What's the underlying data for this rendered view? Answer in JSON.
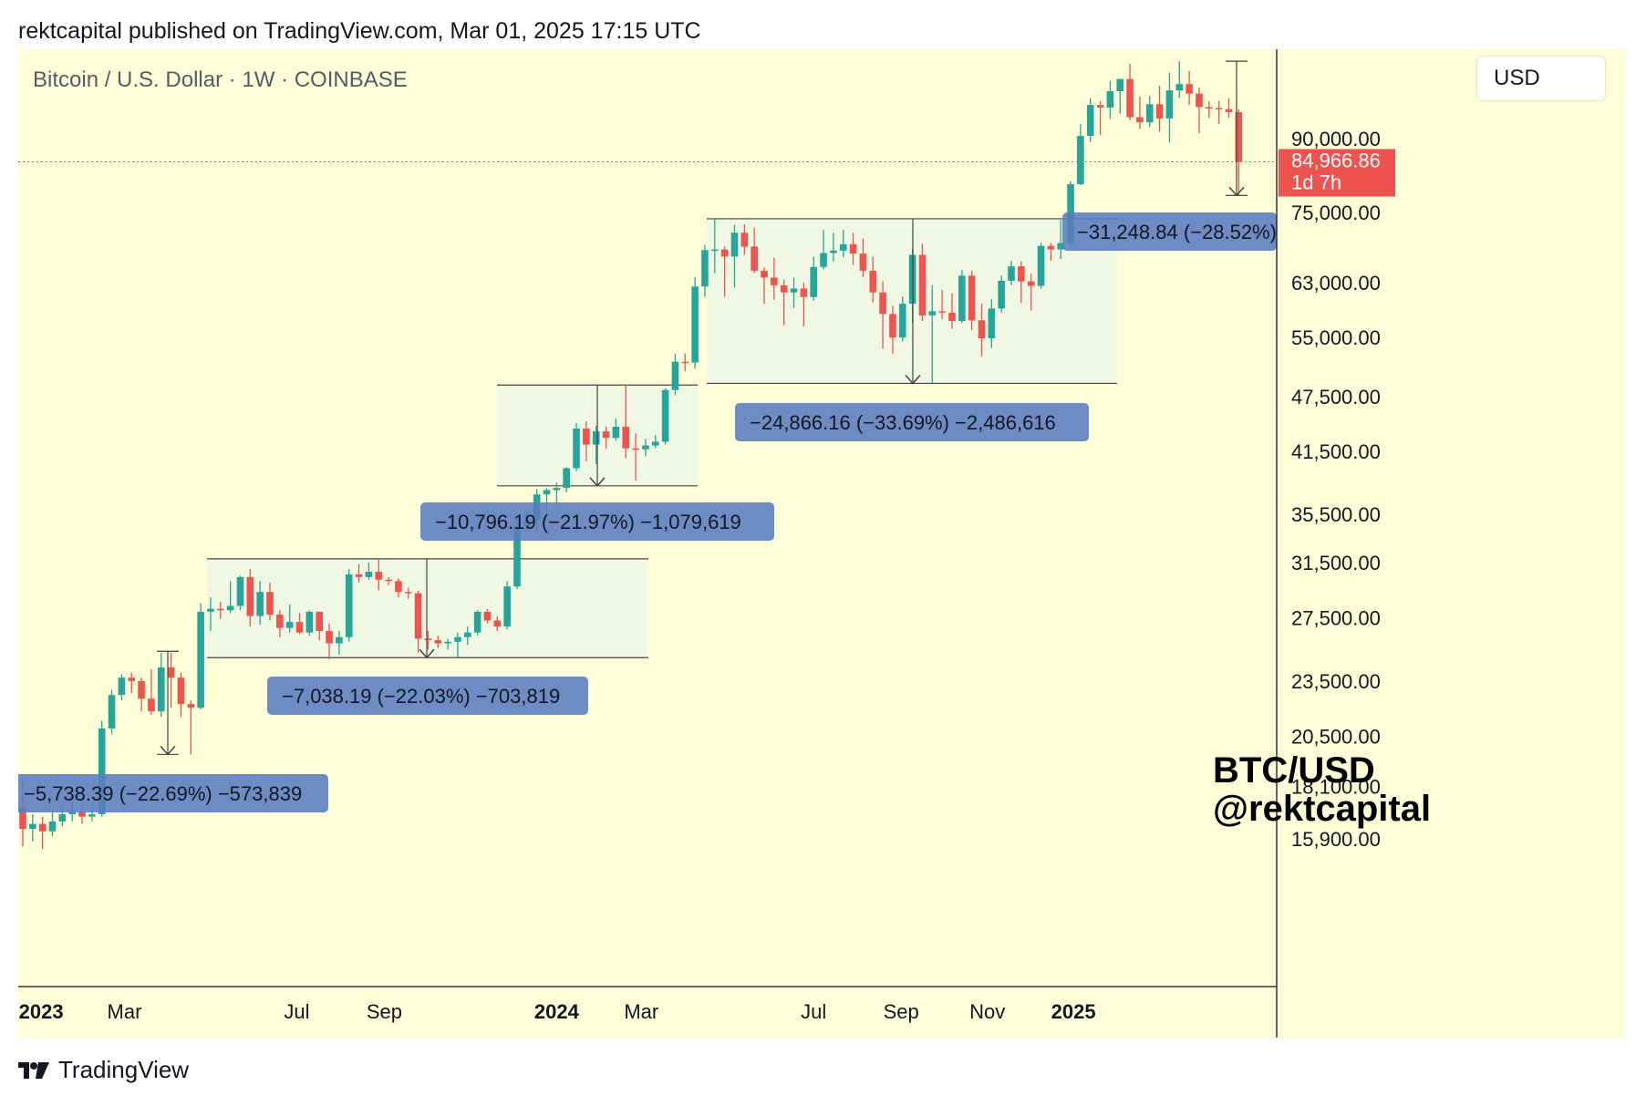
{
  "header": {
    "publisher": "rektcapital published on TradingView.com, Mar 01, 2025 17:15 UTC"
  },
  "symbol": {
    "title": "Bitcoin / U.S. Dollar · 1W · COINBASE"
  },
  "currency": "USD",
  "watermark": {
    "line1": "BTC/USD",
    "line2": "@rektcapital"
  },
  "footer": {
    "brand": "TradingView"
  },
  "colors": {
    "up": "#26a69a",
    "down": "#ef5350",
    "background": "#fefed8",
    "box_fill": "#eef7e4",
    "label": "#5a7cc0"
  },
  "chart_data": {
    "type": "candlestick",
    "scale": "log",
    "y_ticks": [
      "90,000.00",
      "75,000.00",
      "63,000.00",
      "55,000.00",
      "47,500.00",
      "41,500.00",
      "35,500.00",
      "31,500.00",
      "27,500.00",
      "23,500.00",
      "20,500.00",
      "18,100.00",
      "15,900.00"
    ],
    "x_ticks": [
      {
        "label": "2023",
        "date": "2023-01-01",
        "bold": true
      },
      {
        "label": "Mar",
        "date": "2023-03-01",
        "bold": false
      },
      {
        "label": "Jul",
        "date": "2023-07-01",
        "bold": false
      },
      {
        "label": "Sep",
        "date": "2023-09-01",
        "bold": false
      },
      {
        "label": "2024",
        "date": "2024-01-01",
        "bold": true
      },
      {
        "label": "Mar",
        "date": "2024-03-01",
        "bold": false
      },
      {
        "label": "Jul",
        "date": "2024-07-01",
        "bold": false
      },
      {
        "label": "Sep",
        "date": "2024-09-01",
        "bold": false
      },
      {
        "label": "Nov",
        "date": "2024-11-01",
        "bold": false
      },
      {
        "label": "2025",
        "date": "2025-01-01",
        "bold": true
      }
    ],
    "current_price": {
      "value": 84966.86,
      "label": "84,966.86",
      "countdown": "1d 7h"
    },
    "candles": [
      {
        "o": 17200,
        "h": 18400,
        "l": 15600,
        "c": 16300
      },
      {
        "o": 16300,
        "h": 16900,
        "l": 15800,
        "c": 16500
      },
      {
        "o": 16500,
        "h": 16800,
        "l": 15500,
        "c": 16200
      },
      {
        "o": 16200,
        "h": 17000,
        "l": 16000,
        "c": 16600
      },
      {
        "o": 16600,
        "h": 17300,
        "l": 16400,
        "c": 16900
      },
      {
        "o": 16900,
        "h": 17400,
        "l": 16600,
        "c": 17000
      },
      {
        "o": 17000,
        "h": 17300,
        "l": 16500,
        "c": 16800
      },
      {
        "o": 16800,
        "h": 17300,
        "l": 16600,
        "c": 16900
      },
      {
        "o": 16900,
        "h": 21300,
        "l": 16800,
        "c": 20900
      },
      {
        "o": 20900,
        "h": 23000,
        "l": 20600,
        "c": 22700
      },
      {
        "o": 22700,
        "h": 23900,
        "l": 22400,
        "c": 23700
      },
      {
        "o": 23700,
        "h": 24000,
        "l": 22800,
        "c": 23500
      },
      {
        "o": 23500,
        "h": 23700,
        "l": 21800,
        "c": 22500
      },
      {
        "o": 22500,
        "h": 24200,
        "l": 21600,
        "c": 21800
      },
      {
        "o": 21800,
        "h": 25200,
        "l": 21500,
        "c": 24300
      },
      {
        "o": 24300,
        "h": 25200,
        "l": 22000,
        "c": 23700
      },
      {
        "o": 23700,
        "h": 24000,
        "l": 21500,
        "c": 22200
      },
      {
        "o": 22200,
        "h": 22400,
        "l": 19600,
        "c": 22000
      },
      {
        "o": 22000,
        "h": 28500,
        "l": 21900,
        "c": 27900
      },
      {
        "o": 27900,
        "h": 28900,
        "l": 26600,
        "c": 28100
      },
      {
        "o": 28100,
        "h": 28600,
        "l": 27400,
        "c": 28000
      },
      {
        "o": 28000,
        "h": 30100,
        "l": 27800,
        "c": 28300
      },
      {
        "o": 28300,
        "h": 30500,
        "l": 28000,
        "c": 30400
      },
      {
        "o": 30400,
        "h": 31000,
        "l": 26900,
        "c": 27600
      },
      {
        "o": 27600,
        "h": 30100,
        "l": 27000,
        "c": 29300
      },
      {
        "o": 29300,
        "h": 30000,
        "l": 27300,
        "c": 27700
      },
      {
        "o": 27700,
        "h": 28000,
        "l": 26200,
        "c": 26800
      },
      {
        "o": 26800,
        "h": 28400,
        "l": 26500,
        "c": 27200
      },
      {
        "o": 27200,
        "h": 27800,
        "l": 26400,
        "c": 26500
      },
      {
        "o": 26500,
        "h": 28000,
        "l": 26300,
        "c": 27900
      },
      {
        "o": 27900,
        "h": 27900,
        "l": 26000,
        "c": 26600
      },
      {
        "o": 26600,
        "h": 27100,
        "l": 24800,
        "c": 25800
      },
      {
        "o": 25800,
        "h": 26600,
        "l": 25100,
        "c": 26200
      },
      {
        "o": 26200,
        "h": 31000,
        "l": 25900,
        "c": 30600
      },
      {
        "o": 30600,
        "h": 31400,
        "l": 30000,
        "c": 30400
      },
      {
        "o": 30400,
        "h": 31500,
        "l": 30200,
        "c": 30800
      },
      {
        "o": 30800,
        "h": 31800,
        "l": 29400,
        "c": 30200
      },
      {
        "o": 30200,
        "h": 30400,
        "l": 29800,
        "c": 30100
      },
      {
        "o": 30100,
        "h": 30300,
        "l": 28900,
        "c": 29300
      },
      {
        "o": 29300,
        "h": 29600,
        "l": 28800,
        "c": 29200
      },
      {
        "o": 29200,
        "h": 29400,
        "l": 25200,
        "c": 26100
      },
      {
        "o": 26100,
        "h": 26600,
        "l": 25400,
        "c": 26000
      },
      {
        "o": 26000,
        "h": 26300,
        "l": 25500,
        "c": 25800
      },
      {
        "o": 25800,
        "h": 26100,
        "l": 25400,
        "c": 25900
      },
      {
        "o": 25900,
        "h": 26500,
        "l": 24900,
        "c": 26200
      },
      {
        "o": 26200,
        "h": 26900,
        "l": 25700,
        "c": 26500
      },
      {
        "o": 26500,
        "h": 28000,
        "l": 26300,
        "c": 27900
      },
      {
        "o": 27900,
        "h": 28100,
        "l": 27100,
        "c": 27300
      },
      {
        "o": 27300,
        "h": 27600,
        "l": 26600,
        "c": 26900
      },
      {
        "o": 26900,
        "h": 30100,
        "l": 26700,
        "c": 29700
      },
      {
        "o": 29700,
        "h": 35200,
        "l": 29500,
        "c": 34500
      },
      {
        "o": 34500,
        "h": 35800,
        "l": 34000,
        "c": 35000
      },
      {
        "o": 35000,
        "h": 37800,
        "l": 34100,
        "c": 37300
      },
      {
        "o": 37300,
        "h": 37900,
        "l": 35000,
        "c": 37700
      },
      {
        "o": 37700,
        "h": 38400,
        "l": 36300,
        "c": 37900
      },
      {
        "o": 37900,
        "h": 39900,
        "l": 37500,
        "c": 39800
      },
      {
        "o": 39800,
        "h": 44500,
        "l": 39500,
        "c": 43900
      },
      {
        "o": 43900,
        "h": 44700,
        "l": 40500,
        "c": 42200
      },
      {
        "o": 42200,
        "h": 44200,
        "l": 40200,
        "c": 43600
      },
      {
        "o": 43600,
        "h": 44100,
        "l": 41800,
        "c": 42900
      },
      {
        "o": 42900,
        "h": 45000,
        "l": 42600,
        "c": 44100
      },
      {
        "o": 44100,
        "h": 48900,
        "l": 40800,
        "c": 41800
      },
      {
        "o": 41800,
        "h": 43400,
        "l": 38600,
        "c": 41700
      },
      {
        "o": 41700,
        "h": 42800,
        "l": 41000,
        "c": 42100
      },
      {
        "o": 42100,
        "h": 43200,
        "l": 41800,
        "c": 42500
      },
      {
        "o": 42500,
        "h": 48500,
        "l": 42200,
        "c": 48300
      },
      {
        "o": 48300,
        "h": 52800,
        "l": 47700,
        "c": 51800
      },
      {
        "o": 51800,
        "h": 52900,
        "l": 50600,
        "c": 51700
      },
      {
        "o": 51700,
        "h": 63900,
        "l": 50900,
        "c": 62400
      },
      {
        "o": 62400,
        "h": 69200,
        "l": 60800,
        "c": 68300
      },
      {
        "o": 68300,
        "h": 73800,
        "l": 64500,
        "c": 68400
      },
      {
        "o": 68400,
        "h": 68900,
        "l": 60800,
        "c": 67200
      },
      {
        "o": 67200,
        "h": 72700,
        "l": 62300,
        "c": 71300
      },
      {
        "o": 71300,
        "h": 72800,
        "l": 67500,
        "c": 68900
      },
      {
        "o": 68900,
        "h": 72200,
        "l": 64500,
        "c": 64900
      },
      {
        "o": 64900,
        "h": 65400,
        "l": 59800,
        "c": 63800
      },
      {
        "o": 63800,
        "h": 67000,
        "l": 60400,
        "c": 62600
      },
      {
        "o": 62600,
        "h": 63500,
        "l": 56700,
        "c": 61500
      },
      {
        "o": 61500,
        "h": 63800,
        "l": 59200,
        "c": 62100
      },
      {
        "o": 62100,
        "h": 63000,
        "l": 56500,
        "c": 60800
      },
      {
        "o": 60800,
        "h": 67200,
        "l": 60200,
        "c": 65500
      },
      {
        "o": 65500,
        "h": 71800,
        "l": 65100,
        "c": 67800
      },
      {
        "o": 67800,
        "h": 71300,
        "l": 66400,
        "c": 68200
      },
      {
        "o": 68200,
        "h": 71800,
        "l": 67100,
        "c": 69300
      },
      {
        "o": 69300,
        "h": 71300,
        "l": 65800,
        "c": 67700
      },
      {
        "o": 67700,
        "h": 70300,
        "l": 63900,
        "c": 64900
      },
      {
        "o": 64900,
        "h": 67200,
        "l": 60000,
        "c": 61500
      },
      {
        "o": 61500,
        "h": 63200,
        "l": 53500,
        "c": 58300
      },
      {
        "o": 58300,
        "h": 59500,
        "l": 52800,
        "c": 55000
      },
      {
        "o": 55000,
        "h": 60900,
        "l": 54500,
        "c": 59800
      },
      {
        "o": 59800,
        "h": 68500,
        "l": 57000,
        "c": 67500
      },
      {
        "o": 67500,
        "h": 69400,
        "l": 57300,
        "c": 58100
      },
      {
        "o": 58100,
        "h": 62600,
        "l": 49100,
        "c": 58700
      },
      {
        "o": 58700,
        "h": 61900,
        "l": 57600,
        "c": 58500
      },
      {
        "o": 58500,
        "h": 61400,
        "l": 56200,
        "c": 57300
      },
      {
        "o": 57300,
        "h": 65000,
        "l": 57000,
        "c": 64100
      },
      {
        "o": 64100,
        "h": 64900,
        "l": 56000,
        "c": 57400
      },
      {
        "o": 57400,
        "h": 59800,
        "l": 52500,
        "c": 54900
      },
      {
        "o": 54900,
        "h": 60500,
        "l": 53600,
        "c": 59100
      },
      {
        "o": 59100,
        "h": 64100,
        "l": 58500,
        "c": 63300
      },
      {
        "o": 63300,
        "h": 66500,
        "l": 62600,
        "c": 65600
      },
      {
        "o": 65600,
        "h": 66400,
        "l": 59900,
        "c": 63200
      },
      {
        "o": 63200,
        "h": 64400,
        "l": 58800,
        "c": 62500
      },
      {
        "o": 62500,
        "h": 69500,
        "l": 62100,
        "c": 69000
      },
      {
        "o": 69000,
        "h": 69500,
        "l": 66500,
        "c": 68400
      },
      {
        "o": 68400,
        "h": 73600,
        "l": 66800,
        "c": 69500
      },
      {
        "o": 69500,
        "h": 81000,
        "l": 68800,
        "c": 80400
      },
      {
        "o": 80400,
        "h": 93300,
        "l": 80200,
        "c": 90600
      },
      {
        "o": 90600,
        "h": 99500,
        "l": 89200,
        "c": 97800
      },
      {
        "o": 97800,
        "h": 98800,
        "l": 90800,
        "c": 97200
      },
      {
        "o": 97200,
        "h": 103800,
        "l": 94500,
        "c": 101200
      },
      {
        "o": 101200,
        "h": 104000,
        "l": 95700,
        "c": 104300
      },
      {
        "o": 104300,
        "h": 108300,
        "l": 94200,
        "c": 94900
      },
      {
        "o": 94900,
        "h": 99900,
        "l": 92200,
        "c": 93700
      },
      {
        "o": 93700,
        "h": 100000,
        "l": 92600,
        "c": 98000
      },
      {
        "o": 98000,
        "h": 102600,
        "l": 91500,
        "c": 94600
      },
      {
        "o": 94600,
        "h": 106000,
        "l": 89200,
        "c": 101400
      },
      {
        "o": 101400,
        "h": 109000,
        "l": 99500,
        "c": 103000
      },
      {
        "o": 103000,
        "h": 106400,
        "l": 97800,
        "c": 100600
      },
      {
        "o": 100600,
        "h": 102200,
        "l": 91200,
        "c": 97300
      },
      {
        "o": 97300,
        "h": 98700,
        "l": 94700,
        "c": 97100
      },
      {
        "o": 97100,
        "h": 98800,
        "l": 93300,
        "c": 96800
      },
      {
        "o": 96800,
        "h": 99500,
        "l": 94800,
        "c": 96100
      },
      {
        "o": 96100,
        "h": 96800,
        "l": 78200,
        "c": 84966.86
      }
    ],
    "ranges": [
      {
        "label": "−5,738.39 (−22.69%) −573,839",
        "top": 25300,
        "bottom": 19600
      },
      {
        "label": "−7,038.19 (−22.03%) −703,819",
        "top": 31800,
        "bottom": 24900
      },
      {
        "label": "−10,796.19 (−21.97%) −1,079,619",
        "top": 48900,
        "bottom": 38100
      },
      {
        "label": "−24,866.16 (−33.69%) −2,486,616",
        "top": 73800,
        "bottom": 49100
      },
      {
        "label": "−31,248.84 (−28.52%)",
        "top": 109000,
        "bottom": 78200
      }
    ]
  }
}
